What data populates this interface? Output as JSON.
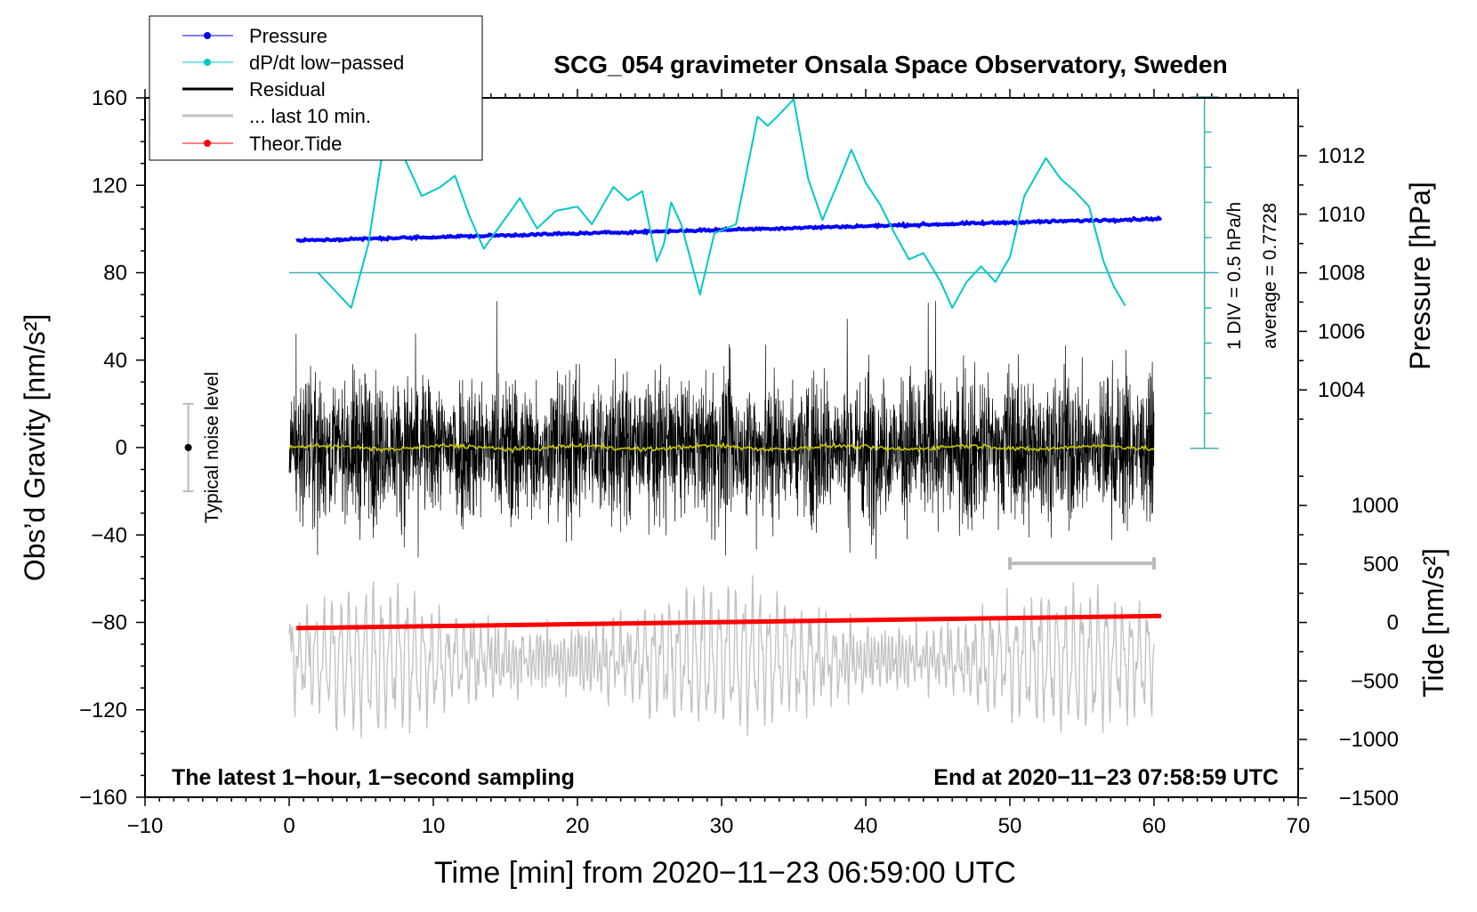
{
  "chart_data": {
    "type": "line",
    "title": "SCG_054 gravimeter Onsala Space Observatory, Sweden",
    "xlabel": "Time [min] from 2020−11−23 06:59:00 UTC",
    "ylabel_left": "Obs’d Gravity [nm/s²]",
    "ylabel_right_top": "Pressure [hPa]",
    "ylabel_right_bottom": "Tide [nm/s²]",
    "xlim": [
      -10,
      70
    ],
    "ylim_left": [
      -160,
      160
    ],
    "x_ticks": [
      "−10",
      "0",
      "10",
      "20",
      "30",
      "40",
      "50",
      "60",
      "70"
    ],
    "y_ticks_left": [
      "160",
      "120",
      "80",
      "40",
      "0",
      "−40",
      "−80",
      "−120",
      "−160"
    ],
    "pressure_ticks": [
      "1012",
      "1010",
      "1008",
      "1006",
      "1004"
    ],
    "tide_ticks": [
      "1000",
      "500",
      "0",
      "−500",
      "−1000",
      "−1500"
    ],
    "legend": [
      "Pressure",
      "dP/dt low−passed",
      "Residual",
      "... last 10 min.",
      "Theor.Tide"
    ],
    "legend_placement": "top-left",
    "colors": {
      "pressure": "#0000ff",
      "dpdt": "#00c8c8",
      "residual": "#000000",
      "last10": "#c0c0c0",
      "tide": "#ff0000",
      "smooth": "#c8c800",
      "scale": "#40b0b0"
    },
    "annotations": {
      "left_bottom": "The latest 1−hour, 1−second sampling",
      "right_bottom": "End at 2020−11−23 07:58:59 UTC",
      "noise": "Typical noise level",
      "div": "1 DIV = 0.5 hPa/h",
      "average": "average = 0.7728"
    },
    "noise_level_bar": {
      "x": -7,
      "low": -20,
      "high": 20
    },
    "last10_bar": {
      "from": 50,
      "to": 60,
      "y": -53
    },
    "pressure_series": {
      "t": [
        0.5,
        60.5
      ],
      "hPa": [
        1009.1,
        1009.85
      ]
    },
    "tide_series": {
      "t": [
        0.5,
        60.5
      ],
      "nm_s2": [
        -48,
        56
      ]
    },
    "dpdt_series": {
      "t": [
        2,
        4.3,
        5.5,
        6.5,
        7.2,
        8,
        9.2,
        10.5,
        11.5,
        12.5,
        13.5,
        14.5,
        16,
        17.2,
        18.5,
        20,
        21,
        22.5,
        23.5,
        24.5,
        25.5,
        26,
        26.5,
        27.2,
        28.5,
        29.5,
        31,
        32.5,
        33.2,
        34,
        35,
        36,
        37,
        38.2,
        39,
        40,
        41,
        42,
        43,
        44,
        45.2,
        46,
        47,
        48,
        49,
        50,
        51,
        52.5,
        53.5,
        54.5,
        55.5,
        56.5,
        57.2,
        58
      ],
      "hPa_per_h_offset": [
        0,
        -0.5,
        0.41,
        1.75,
        2.0,
        1.63,
        1.09,
        1.22,
        1.38,
        0.81,
        0.34,
        0.63,
        1.06,
        0.63,
        0.88,
        0.94,
        0.69,
        1.22,
        1.03,
        1.16,
        0.16,
        0.41,
        1.0,
        0.69,
        -0.31,
        0.56,
        0.69,
        2.22,
        2.09,
        2.25,
        2.47,
        1.34,
        0.75,
        1.34,
        1.75,
        1.28,
        0.97,
        0.56,
        0.19,
        0.28,
        -0.13,
        -0.5,
        -0.13,
        0.09,
        -0.13,
        0.22,
        1.09,
        1.63,
        1.34,
        1.16,
        0.94,
        0.16,
        -0.19,
        -0.47
      ]
    },
    "residual_series": {
      "t_range": [
        0,
        60
      ],
      "amplitude_typical": 25,
      "amplitude_peak": 67
    }
  }
}
